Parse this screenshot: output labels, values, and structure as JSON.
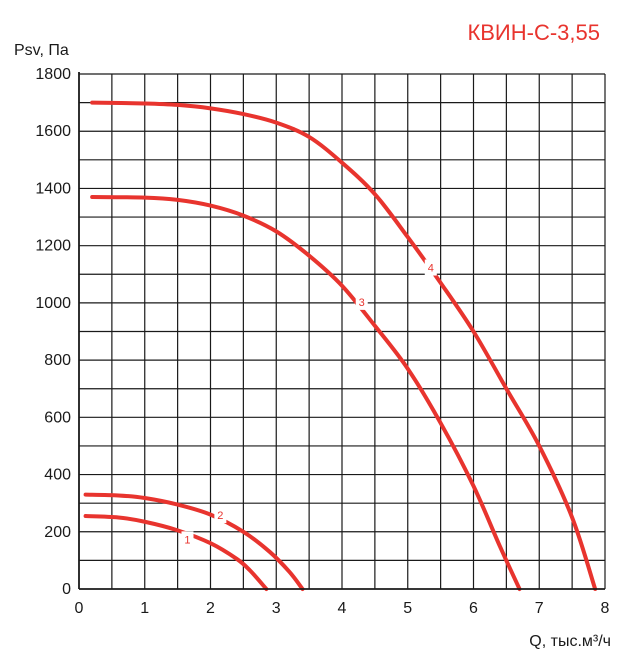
{
  "chart_data": {
    "type": "line",
    "title": "КВИН-С-3,55",
    "xlabel": "Q, тыс.м³/ч",
    "ylabel": "Psv, Па",
    "xlim": [
      0,
      8
    ],
    "ylim": [
      0,
      1800
    ],
    "x_ticks": [
      "0",
      "1",
      "2",
      "3",
      "4",
      "5",
      "6",
      "7",
      "8"
    ],
    "y_ticks": [
      "0",
      "200",
      "400",
      "600",
      "800",
      "1000",
      "1200",
      "1400",
      "1600",
      "1800"
    ],
    "grid": true,
    "series": [
      {
        "name": "1",
        "color": "#e8342e",
        "label_at": [
          1.65,
          170
        ],
        "points": [
          [
            0.1,
            255
          ],
          [
            0.6,
            250
          ],
          [
            1.0,
            235
          ],
          [
            1.5,
            205
          ],
          [
            2.0,
            160
          ],
          [
            2.4,
            105
          ],
          [
            2.6,
            65
          ],
          [
            2.85,
            0
          ]
        ]
      },
      {
        "name": "2",
        "color": "#e8342e",
        "label_at": [
          2.15,
          255
        ],
        "points": [
          [
            0.1,
            330
          ],
          [
            0.6,
            327
          ],
          [
            1.0,
            318
          ],
          [
            1.5,
            295
          ],
          [
            2.0,
            260
          ],
          [
            2.5,
            200
          ],
          [
            2.9,
            130
          ],
          [
            3.2,
            60
          ],
          [
            3.4,
            0
          ]
        ]
      },
      {
        "name": "3",
        "color": "#e8342e",
        "label_at": [
          4.3,
          1000
        ],
        "points": [
          [
            0.2,
            1370
          ],
          [
            1.0,
            1368
          ],
          [
            1.5,
            1360
          ],
          [
            2.0,
            1340
          ],
          [
            2.5,
            1305
          ],
          [
            3.0,
            1250
          ],
          [
            3.5,
            1165
          ],
          [
            4.0,
            1060
          ],
          [
            4.5,
            920
          ],
          [
            5.0,
            770
          ],
          [
            5.5,
            580
          ],
          [
            6.0,
            360
          ],
          [
            6.4,
            150
          ],
          [
            6.7,
            0
          ]
        ]
      },
      {
        "name": "4",
        "color": "#e8342e",
        "label_at": [
          5.35,
          1120
        ],
        "points": [
          [
            0.2,
            1700
          ],
          [
            1.0,
            1697
          ],
          [
            1.5,
            1692
          ],
          [
            2.0,
            1680
          ],
          [
            2.5,
            1660
          ],
          [
            3.0,
            1630
          ],
          [
            3.5,
            1580
          ],
          [
            4.0,
            1490
          ],
          [
            4.5,
            1380
          ],
          [
            5.0,
            1230
          ],
          [
            5.5,
            1070
          ],
          [
            6.0,
            900
          ],
          [
            6.5,
            700
          ],
          [
            7.0,
            500
          ],
          [
            7.5,
            250
          ],
          [
            7.85,
            0
          ]
        ]
      }
    ]
  }
}
